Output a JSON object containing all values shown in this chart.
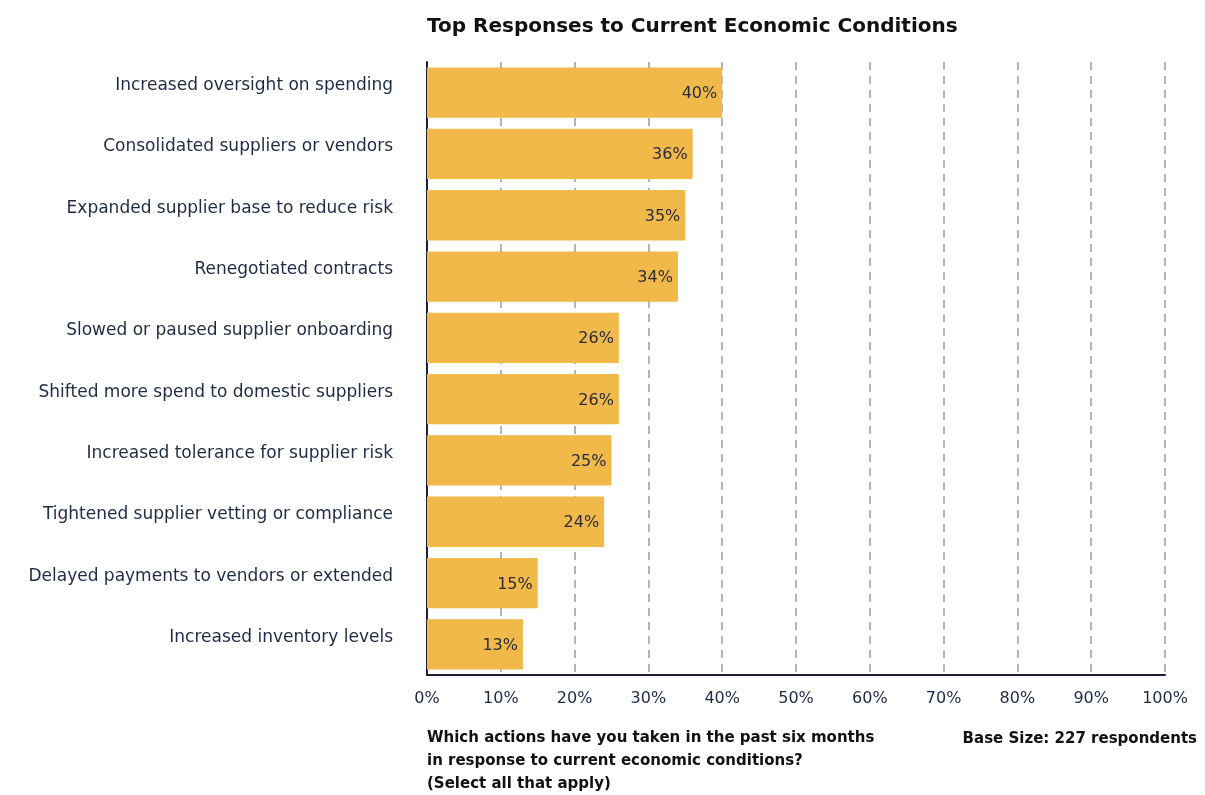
{
  "chart_data": {
    "type": "bar",
    "orientation": "horizontal",
    "title": "Top Responses to Current Economic Conditions",
    "categories": [
      "Increased oversight on spending",
      "Consolidated suppliers or vendors",
      "Expanded supplier base to reduce risk",
      "Renegotiated contracts",
      "Slowed or paused supplier onboarding",
      "Shifted more spend to domestic suppliers",
      "Increased tolerance for supplier risk",
      "Tightened supplier vetting or compliance",
      "Delayed payments to vendors or extended",
      "Increased inventory levels"
    ],
    "values": [
      40,
      36,
      35,
      34,
      26,
      26,
      25,
      24,
      15,
      13
    ],
    "value_labels": [
      "40%",
      "36%",
      "35%",
      "34%",
      "26%",
      "26%",
      "25%",
      "24%",
      "15%",
      "13%"
    ],
    "color": "#f0b94a",
    "xlim": [
      0,
      100
    ],
    "xticks": [
      {
        "value": 0,
        "label": "0%"
      },
      {
        "value": 10,
        "label": "10%"
      },
      {
        "value": 20,
        "label": "20%"
      },
      {
        "value": 30,
        "label": "30%"
      },
      {
        "value": 40,
        "label": "40%"
      },
      {
        "value": 50,
        "label": "50%"
      },
      {
        "value": 60,
        "label": "60%"
      },
      {
        "value": 70,
        "label": "70%"
      },
      {
        "value": 80,
        "label": "80%"
      },
      {
        "value": 90,
        "label": "90%"
      },
      {
        "value": 100,
        "label": "100%"
      }
    ],
    "grid": "x",
    "annotations": [
      "Which actions have you taken in the past six months\nin response to current economic conditions?\n(Select all that apply)",
      "Base Size: 227 respondents"
    ]
  }
}
